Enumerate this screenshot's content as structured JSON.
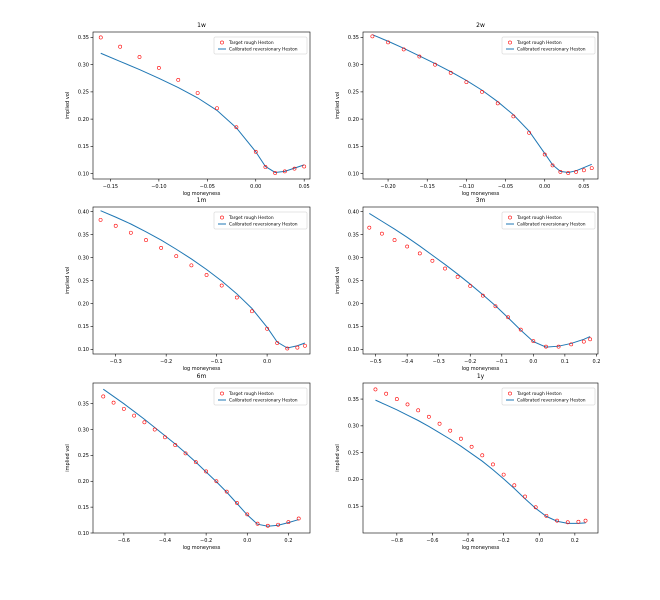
{
  "figure": {
    "legend_target": "Target rough Heston",
    "legend_calibrated": "Calibrated reversionary Heston",
    "target_color": "#ff0000",
    "calibrated_color": "#1f77b4"
  },
  "chart_data": [
    {
      "type": "line",
      "title": "1w",
      "xlabel": "log moneyness",
      "ylabel": "implied vol",
      "grid": false,
      "legend": "top-right",
      "xlim": [
        -0.168,
        0.056
      ],
      "ylim": [
        0.09,
        0.36
      ],
      "xticks": [
        -0.15,
        -0.1,
        -0.05,
        0.0,
        0.05
      ],
      "xticklabels": [
        "−0.15",
        "−0.10",
        "−0.05",
        "0.00",
        "0.05"
      ],
      "yticks": [
        0.1,
        0.15,
        0.2,
        0.25,
        0.3,
        0.35
      ],
      "yticklabels": [
        "0.10",
        "0.15",
        "0.20",
        "0.25",
        "0.30",
        "0.35"
      ],
      "series": [
        {
          "name": "Target rough Heston",
          "style": "markers",
          "x": [
            -0.16,
            -0.14,
            -0.12,
            -0.1,
            -0.08,
            -0.06,
            -0.04,
            -0.02,
            0.0,
            0.01,
            0.02,
            0.03,
            0.04,
            0.05
          ],
          "y": [
            0.35,
            0.333,
            0.314,
            0.294,
            0.272,
            0.248,
            0.22,
            0.185,
            0.14,
            0.112,
            0.101,
            0.104,
            0.109,
            0.113
          ]
        },
        {
          "name": "Calibrated reversionary Heston",
          "style": "line",
          "x": [
            -0.16,
            -0.14,
            -0.12,
            -0.1,
            -0.08,
            -0.06,
            -0.04,
            -0.02,
            0.0,
            0.01,
            0.02,
            0.03,
            0.04,
            0.05
          ],
          "y": [
            0.321,
            0.306,
            0.291,
            0.275,
            0.258,
            0.239,
            0.216,
            0.184,
            0.14,
            0.113,
            0.102,
            0.104,
            0.11,
            0.116
          ]
        }
      ]
    },
    {
      "type": "line",
      "title": "2w",
      "xlabel": "log moneyness",
      "ylabel": "implied vol",
      "grid": false,
      "legend": "top-right",
      "xlim": [
        -0.232,
        0.068
      ],
      "ylim": [
        0.09,
        0.36
      ],
      "xticks": [
        -0.2,
        -0.15,
        -0.1,
        -0.05,
        0.0,
        0.05
      ],
      "xticklabels": [
        "−0.20",
        "−0.15",
        "−0.10",
        "−0.05",
        "0.00",
        "0.05"
      ],
      "yticks": [
        0.1,
        0.15,
        0.2,
        0.25,
        0.3,
        0.35
      ],
      "yticklabels": [
        "0.10",
        "0.15",
        "0.20",
        "0.25",
        "0.30",
        "0.35"
      ],
      "series": [
        {
          "name": "Target rough Heston",
          "style": "markers",
          "x": [
            -0.22,
            -0.2,
            -0.18,
            -0.16,
            -0.14,
            -0.12,
            -0.1,
            -0.08,
            -0.06,
            -0.04,
            -0.02,
            0.0,
            0.01,
            0.02,
            0.03,
            0.04,
            0.05,
            0.06
          ],
          "y": [
            0.352,
            0.341,
            0.328,
            0.315,
            0.3,
            0.285,
            0.268,
            0.25,
            0.229,
            0.205,
            0.175,
            0.135,
            0.115,
            0.103,
            0.101,
            0.103,
            0.106,
            0.11
          ]
        },
        {
          "name": "Calibrated reversionary Heston",
          "style": "line",
          "x": [
            -0.22,
            -0.2,
            -0.18,
            -0.16,
            -0.14,
            -0.12,
            -0.1,
            -0.08,
            -0.06,
            -0.04,
            -0.02,
            0.0,
            0.01,
            0.02,
            0.03,
            0.04,
            0.05,
            0.06
          ],
          "y": [
            0.355,
            0.343,
            0.33,
            0.316,
            0.302,
            0.287,
            0.271,
            0.253,
            0.232,
            0.208,
            0.178,
            0.137,
            0.116,
            0.104,
            0.102,
            0.105,
            0.111,
            0.117
          ]
        }
      ]
    },
    {
      "type": "line",
      "title": "1m",
      "xlabel": "log moneyness",
      "ylabel": "implied vol",
      "grid": false,
      "legend": "top-right",
      "xlim": [
        -0.345,
        0.085
      ],
      "ylim": [
        0.09,
        0.41
      ],
      "xticks": [
        -0.3,
        -0.2,
        -0.1,
        0.0
      ],
      "xticklabels": [
        "−0.3",
        "−0.2",
        "−0.1",
        "0.0"
      ],
      "yticks": [
        0.1,
        0.15,
        0.2,
        0.25,
        0.3,
        0.35,
        0.4
      ],
      "yticklabels": [
        "0.10",
        "0.15",
        "0.20",
        "0.25",
        "0.30",
        "0.35",
        "0.40"
      ],
      "series": [
        {
          "name": "Target rough Heston",
          "style": "markers",
          "x": [
            -0.33,
            -0.3,
            -0.27,
            -0.24,
            -0.21,
            -0.18,
            -0.15,
            -0.12,
            -0.09,
            -0.06,
            -0.03,
            0.0,
            0.02,
            0.04,
            0.06,
            0.075
          ],
          "y": [
            0.382,
            0.369,
            0.354,
            0.338,
            0.321,
            0.303,
            0.283,
            0.262,
            0.239,
            0.213,
            0.183,
            0.145,
            0.114,
            0.102,
            0.104,
            0.108
          ]
        },
        {
          "name": "Calibrated reversionary Heston",
          "style": "line",
          "x": [
            -0.33,
            -0.3,
            -0.27,
            -0.24,
            -0.21,
            -0.18,
            -0.15,
            -0.12,
            -0.09,
            -0.06,
            -0.03,
            0.0,
            0.02,
            0.04,
            0.06,
            0.075
          ],
          "y": [
            0.402,
            0.388,
            0.373,
            0.356,
            0.338,
            0.318,
            0.297,
            0.274,
            0.249,
            0.221,
            0.189,
            0.148,
            0.116,
            0.103,
            0.108,
            0.114
          ]
        }
      ]
    },
    {
      "type": "line",
      "title": "3m",
      "xlabel": "log moneyness",
      "ylabel": "implied vol",
      "grid": false,
      "legend": "top-right",
      "xlim": [
        -0.54,
        0.205
      ],
      "ylim": [
        0.09,
        0.41
      ],
      "xticks": [
        -0.5,
        -0.4,
        -0.3,
        -0.2,
        -0.1,
        0.0,
        0.1,
        0.2
      ],
      "xticklabels": [
        "−0.5",
        "−0.4",
        "−0.3",
        "−0.2",
        "−0.1",
        "0.0",
        "0.1",
        "0.2"
      ],
      "yticks": [
        0.1,
        0.15,
        0.2,
        0.25,
        0.3,
        0.35,
        0.4
      ],
      "yticklabels": [
        "0.10",
        "0.15",
        "0.20",
        "0.25",
        "0.30",
        "0.35",
        "0.40"
      ],
      "series": [
        {
          "name": "Target rough Heston",
          "style": "markers",
          "x": [
            -0.52,
            -0.48,
            -0.44,
            -0.4,
            -0.36,
            -0.32,
            -0.28,
            -0.24,
            -0.2,
            -0.16,
            -0.12,
            -0.08,
            -0.04,
            0.0,
            0.04,
            0.08,
            0.12,
            0.16,
            0.18
          ],
          "y": [
            0.365,
            0.352,
            0.338,
            0.324,
            0.309,
            0.293,
            0.276,
            0.258,
            0.238,
            0.217,
            0.194,
            0.17,
            0.143,
            0.118,
            0.106,
            0.106,
            0.111,
            0.117,
            0.122
          ]
        },
        {
          "name": "Calibrated reversionary Heston",
          "style": "line",
          "x": [
            -0.52,
            -0.48,
            -0.44,
            -0.4,
            -0.36,
            -0.32,
            -0.28,
            -0.24,
            -0.2,
            -0.16,
            -0.12,
            -0.08,
            -0.04,
            0.0,
            0.04,
            0.08,
            0.12,
            0.16,
            0.18
          ],
          "y": [
            0.396,
            0.379,
            0.362,
            0.344,
            0.325,
            0.305,
            0.285,
            0.264,
            0.242,
            0.219,
            0.195,
            0.169,
            0.142,
            0.117,
            0.105,
            0.107,
            0.113,
            0.122,
            0.128
          ]
        }
      ]
    },
    {
      "type": "line",
      "title": "6m",
      "xlabel": "log moneyness",
      "ylabel": "implied vol",
      "grid": false,
      "legend": "top-right",
      "xlim": [
        -0.75,
        0.305
      ],
      "ylim": [
        0.1,
        0.39
      ],
      "xticks": [
        -0.6,
        -0.4,
        -0.2,
        0.0,
        0.2
      ],
      "xticklabels": [
        "−0.6",
        "−0.4",
        "−0.2",
        "0.0",
        "0.2"
      ],
      "yticks": [
        0.1,
        0.15,
        0.2,
        0.25,
        0.3,
        0.35
      ],
      "yticklabels": [
        "0.10",
        "0.15",
        "0.20",
        "0.25",
        "0.30",
        "0.35"
      ],
      "series": [
        {
          "name": "Target rough Heston",
          "style": "markers",
          "x": [
            -0.7,
            -0.65,
            -0.6,
            -0.55,
            -0.5,
            -0.45,
            -0.4,
            -0.35,
            -0.3,
            -0.25,
            -0.2,
            -0.15,
            -0.1,
            -0.05,
            0.0,
            0.05,
            0.1,
            0.15,
            0.2,
            0.25
          ],
          "y": [
            0.364,
            0.352,
            0.34,
            0.327,
            0.314,
            0.3,
            0.285,
            0.27,
            0.254,
            0.237,
            0.219,
            0.2,
            0.18,
            0.158,
            0.136,
            0.118,
            0.114,
            0.116,
            0.121,
            0.128
          ]
        },
        {
          "name": "Calibrated reversionary Heston",
          "style": "line",
          "x": [
            -0.7,
            -0.65,
            -0.6,
            -0.55,
            -0.5,
            -0.45,
            -0.4,
            -0.35,
            -0.3,
            -0.25,
            -0.2,
            -0.15,
            -0.1,
            -0.05,
            0.0,
            0.05,
            0.1,
            0.15,
            0.2,
            0.25
          ],
          "y": [
            0.378,
            0.364,
            0.35,
            0.335,
            0.32,
            0.304,
            0.288,
            0.272,
            0.255,
            0.237,
            0.218,
            0.199,
            0.179,
            0.157,
            0.135,
            0.117,
            0.113,
            0.115,
            0.12,
            0.126
          ]
        }
      ]
    },
    {
      "type": "line",
      "title": "1y",
      "xlabel": "log moneyness",
      "ylabel": "implied vol",
      "grid": false,
      "legend": "top-right",
      "xlim": [
        -0.99,
        0.33
      ],
      "ylim": [
        0.1,
        0.38
      ],
      "xticks": [
        -0.8,
        -0.6,
        -0.4,
        -0.2,
        0.0,
        0.2
      ],
      "xticklabels": [
        "−0.8",
        "−0.6",
        "−0.4",
        "−0.2",
        "0.0",
        "0.2"
      ],
      "yticks": [
        0.15,
        0.2,
        0.25,
        0.3,
        0.35
      ],
      "yticklabels": [
        "0.15",
        "0.20",
        "0.25",
        "0.30",
        "0.35"
      ],
      "series": [
        {
          "name": "Target rough Heston",
          "style": "markers",
          "x": [
            -0.92,
            -0.86,
            -0.8,
            -0.74,
            -0.68,
            -0.62,
            -0.56,
            -0.5,
            -0.44,
            -0.38,
            -0.32,
            -0.26,
            -0.2,
            -0.14,
            -0.08,
            -0.02,
            0.04,
            0.1,
            0.16,
            0.22,
            0.26
          ],
          "y": [
            0.368,
            0.36,
            0.35,
            0.34,
            0.329,
            0.317,
            0.304,
            0.291,
            0.276,
            0.261,
            0.245,
            0.228,
            0.209,
            0.189,
            0.168,
            0.148,
            0.132,
            0.123,
            0.12,
            0.121,
            0.123
          ]
        },
        {
          "name": "Calibrated reversionary Heston",
          "style": "line",
          "x": [
            -0.92,
            -0.86,
            -0.8,
            -0.74,
            -0.68,
            -0.62,
            -0.56,
            -0.5,
            -0.44,
            -0.38,
            -0.32,
            -0.26,
            -0.2,
            -0.14,
            -0.08,
            -0.02,
            0.04,
            0.1,
            0.16,
            0.22,
            0.26
          ],
          "y": [
            0.348,
            0.339,
            0.33,
            0.32,
            0.31,
            0.299,
            0.287,
            0.275,
            0.262,
            0.248,
            0.234,
            0.218,
            0.201,
            0.183,
            0.164,
            0.146,
            0.131,
            0.122,
            0.118,
            0.118,
            0.119
          ]
        }
      ]
    }
  ]
}
